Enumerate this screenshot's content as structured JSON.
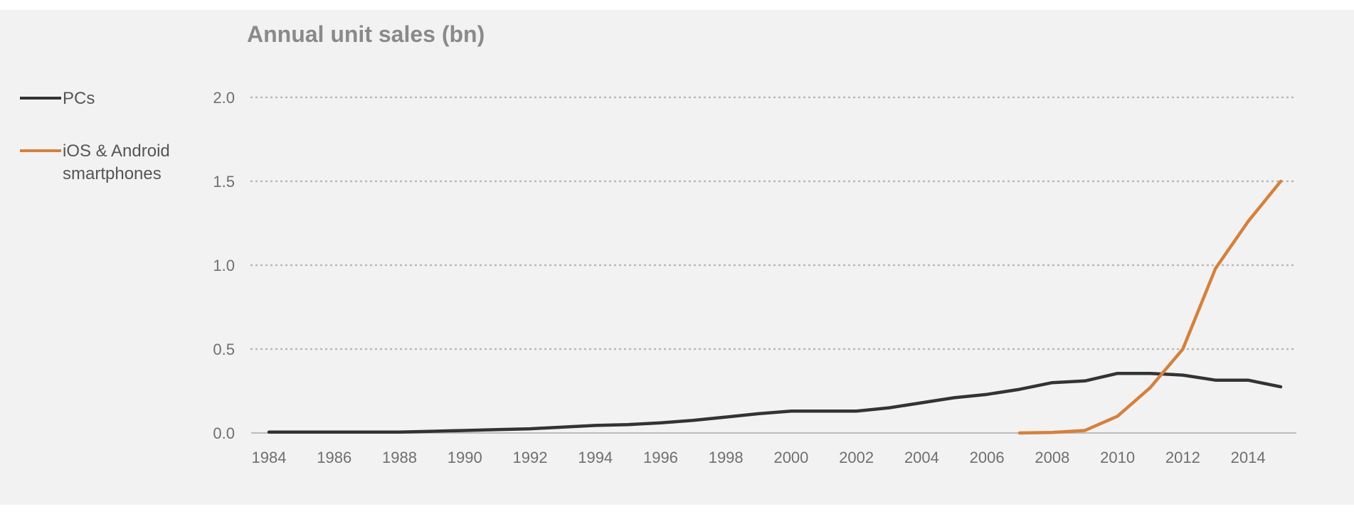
{
  "chart_data": {
    "type": "line",
    "title": "Annual unit sales (bn)",
    "xlabel": "",
    "ylabel": "",
    "xlim": [
      1984,
      2015
    ],
    "ylim": [
      0,
      2.0
    ],
    "y_ticks": [
      "0.0",
      "0.5",
      "1.0",
      "1.5",
      "2.0"
    ],
    "x_ticks": [
      "1984",
      "1986",
      "1988",
      "1990",
      "1992",
      "1994",
      "1996",
      "1998",
      "2000",
      "2002",
      "2004",
      "2006",
      "2008",
      "2010",
      "2012",
      "2014"
    ],
    "grid": "horizontal dotted",
    "legend": {
      "placement": "left",
      "entries": [
        {
          "lines": [
            "PCs"
          ]
        },
        {
          "lines": [
            "iOS & Android",
            "smartphones"
          ]
        }
      ]
    },
    "series": [
      {
        "name": "PCs",
        "color": "#333333",
        "points": [
          [
            1984,
            0.005
          ],
          [
            1985,
            0.005
          ],
          [
            1986,
            0.005
          ],
          [
            1987,
            0.005
          ],
          [
            1988,
            0.005
          ],
          [
            1989,
            0.01
          ],
          [
            1990,
            0.015
          ],
          [
            1991,
            0.02
          ],
          [
            1992,
            0.025
          ],
          [
            1993,
            0.035
          ],
          [
            1994,
            0.045
          ],
          [
            1995,
            0.05
          ],
          [
            1996,
            0.06
          ],
          [
            1997,
            0.075
          ],
          [
            1998,
            0.095
          ],
          [
            1999,
            0.115
          ],
          [
            2000,
            0.13
          ],
          [
            2001,
            0.13
          ],
          [
            2002,
            0.13
          ],
          [
            2003,
            0.15
          ],
          [
            2004,
            0.18
          ],
          [
            2005,
            0.21
          ],
          [
            2006,
            0.23
          ],
          [
            2007,
            0.26
          ],
          [
            2008,
            0.3
          ],
          [
            2009,
            0.31
          ],
          [
            2010,
            0.355
          ],
          [
            2011,
            0.355
          ],
          [
            2012,
            0.345
          ],
          [
            2013,
            0.315
          ],
          [
            2014,
            0.315
          ],
          [
            2015,
            0.275
          ]
        ]
      },
      {
        "name": "iOS & Android smartphones",
        "color": "#d4813d",
        "points": [
          [
            2007,
            0.0
          ],
          [
            2008,
            0.003
          ],
          [
            2009,
            0.015
          ],
          [
            2010,
            0.1
          ],
          [
            2011,
            0.27
          ],
          [
            2012,
            0.5
          ],
          [
            2013,
            0.98
          ],
          [
            2014,
            1.26
          ],
          [
            2015,
            1.5
          ]
        ]
      }
    ]
  }
}
